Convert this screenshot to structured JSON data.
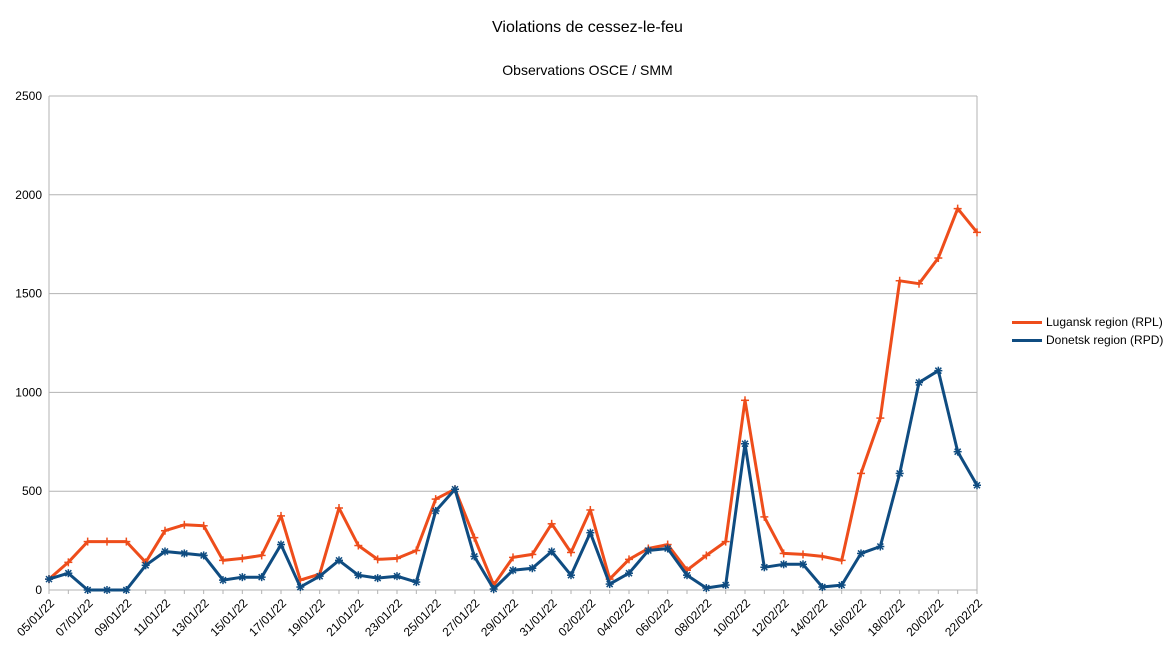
{
  "chart_data": {
    "type": "line",
    "title": "Violations de cessez-le-feu",
    "subtitle": "Observations OSCE / SMM",
    "xlabel": "",
    "ylabel": "",
    "ylim": [
      0,
      2500
    ],
    "y_ticks": [
      0,
      500,
      1000,
      1500,
      2000,
      2500
    ],
    "grid": true,
    "legend_position": "right",
    "x": [
      "05/01/22",
      "06/01/22",
      "07/01/22",
      "08/01/22",
      "09/01/22",
      "10/01/22",
      "11/01/22",
      "12/01/22",
      "13/01/22",
      "14/01/22",
      "15/01/22",
      "16/01/22",
      "17/01/22",
      "18/01/22",
      "19/01/22",
      "20/01/22",
      "21/01/22",
      "22/01/22",
      "23/01/22",
      "24/01/22",
      "25/01/22",
      "26/01/22",
      "27/01/22",
      "28/01/22",
      "29/01/22",
      "30/01/22",
      "31/01/22",
      "01/02/22",
      "02/02/22",
      "03/02/22",
      "04/02/22",
      "05/02/22",
      "06/02/22",
      "07/02/22",
      "08/02/22",
      "09/02/22",
      "10/02/22",
      "11/02/22",
      "12/02/22",
      "13/02/22",
      "14/02/22",
      "15/02/22",
      "16/02/22",
      "17/02/22",
      "18/02/22",
      "19/02/22",
      "20/02/22",
      "21/02/22",
      "22/02/22"
    ],
    "x_tick_labels": [
      "05/01/22",
      "07/01/22",
      "09/01/22",
      "11/01/22",
      "13/01/22",
      "15/01/22",
      "17/01/22",
      "19/01/22",
      "21/01/22",
      "23/01/22",
      "25/01/22",
      "27/01/22",
      "29/01/22",
      "31/01/22",
      "02/02/22",
      "04/02/22",
      "06/02/22",
      "08/02/22",
      "10/02/22",
      "12/02/22",
      "14/02/22",
      "16/02/22",
      "18/02/22",
      "20/02/22",
      "22/02/22"
    ],
    "series": [
      {
        "name": "Lugansk region (RPL)",
        "color": "#ee4d1b",
        "marker": "plus",
        "values": [
          55,
          140,
          245,
          245,
          245,
          140,
          300,
          330,
          325,
          150,
          160,
          175,
          375,
          50,
          80,
          415,
          225,
          155,
          160,
          200,
          460,
          510,
          265,
          25,
          165,
          180,
          335,
          190,
          405,
          55,
          155,
          210,
          230,
          100,
          175,
          245,
          960,
          370,
          185,
          180,
          170,
          150,
          590,
          870,
          1565,
          1550,
          1680,
          1930,
          1810
        ]
      },
      {
        "name": "Donetsk region (RPD)",
        "color": "#0f4c81",
        "marker": "star",
        "values": [
          55,
          85,
          0,
          0,
          0,
          125,
          195,
          185,
          175,
          50,
          65,
          65,
          230,
          15,
          70,
          150,
          75,
          60,
          70,
          40,
          400,
          510,
          170,
          5,
          100,
          110,
          195,
          75,
          290,
          30,
          85,
          200,
          210,
          75,
          10,
          25,
          740,
          115,
          130,
          130,
          15,
          25,
          185,
          220,
          590,
          1050,
          1110,
          700,
          530
        ]
      }
    ]
  }
}
